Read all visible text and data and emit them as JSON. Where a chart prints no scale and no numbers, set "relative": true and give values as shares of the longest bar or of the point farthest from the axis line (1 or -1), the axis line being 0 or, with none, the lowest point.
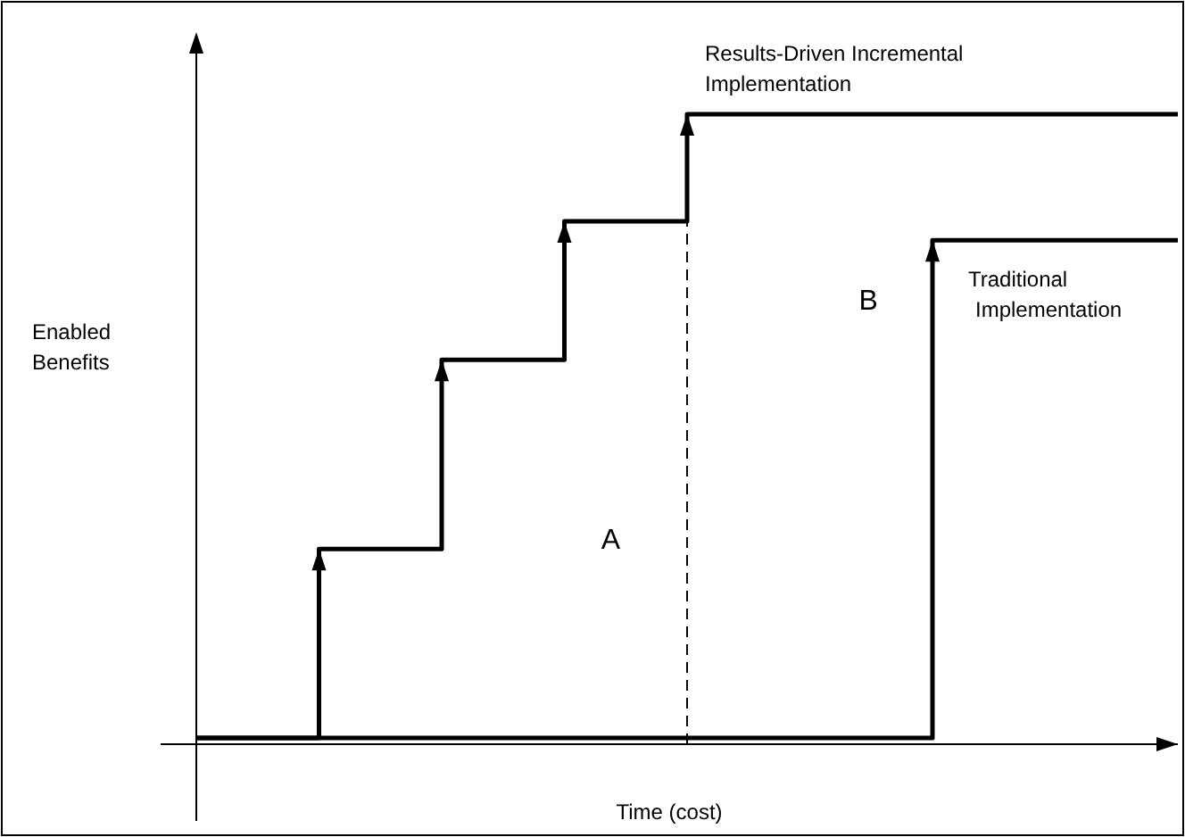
{
  "chart_data": {
    "type": "step",
    "relative": true,
    "xlabel": "Time (cost)",
    "ylabel": "Enabled Benefits",
    "categories": [
      null,
      null,
      null,
      null,
      null,
      null,
      null,
      null,
      null
    ],
    "legend": false,
    "grid": false,
    "marker": "none",
    "line_style": "solid",
    "series": [
      {
        "name": "Results-Driven Incremental Implementation",
        "color": "#000000",
        "values": [
          0.01,
          0.31,
          0.61,
          0.83,
          1,
          1,
          1,
          1,
          1
        ]
      },
      {
        "name": "Traditional Implementation",
        "color": "#000000",
        "values": [
          0.01,
          0.01,
          0.01,
          0.01,
          0.01,
          0.01,
          0.8,
          0.8,
          0.8
        ]
      }
    ],
    "annotations": [
      "A",
      "B"
    ]
  }
}
